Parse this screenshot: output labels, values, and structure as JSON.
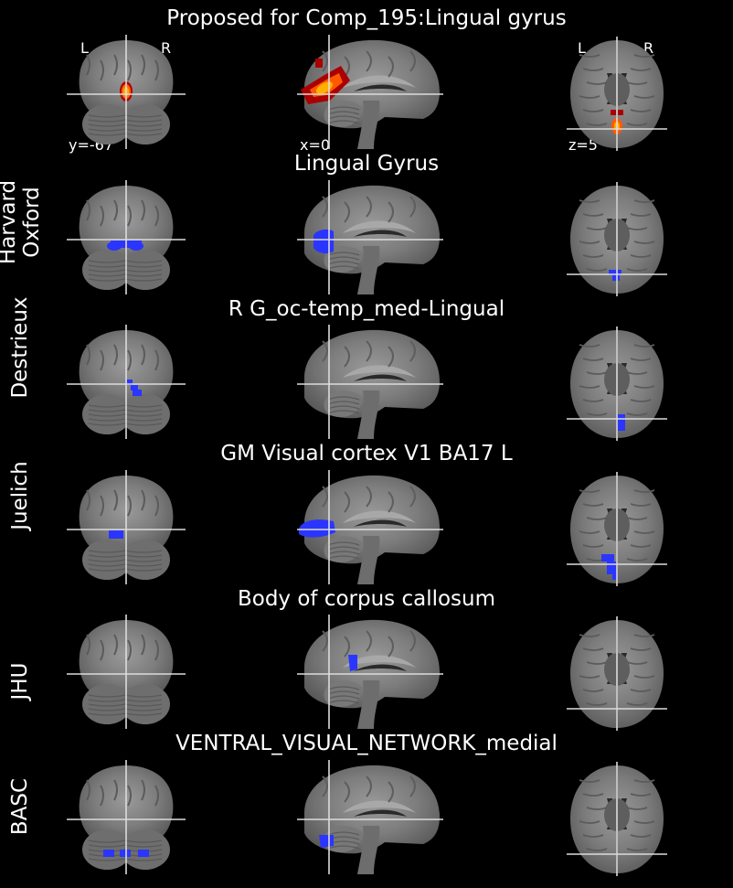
{
  "figure": {
    "main_title": "Proposed for Comp_195:Lingual gyrus",
    "orientation_labels": {
      "left": "L",
      "right": "R"
    },
    "coordinates": {
      "coronal": "y=-67",
      "sagittal": "x=0",
      "axial": "z=5"
    },
    "overlay_colors": {
      "component": "#ffb000",
      "atlas": "#2a35ff"
    },
    "rows": [
      {
        "atlas": "",
        "region": "Proposed for Comp_195:Lingual gyrus"
      },
      {
        "atlas": "Harvard\nOxford",
        "region": "Lingual Gyrus"
      },
      {
        "atlas": "Destrieux",
        "region": "R G_oc-temp_med-Lingual"
      },
      {
        "atlas": "Juelich",
        "region": "GM Visual cortex V1 BA17 L"
      },
      {
        "atlas": "JHU",
        "region": "Body of corpus callosum"
      },
      {
        "atlas": "BASC",
        "region": "VENTRAL_VISUAL_NETWORK_medial"
      }
    ]
  }
}
